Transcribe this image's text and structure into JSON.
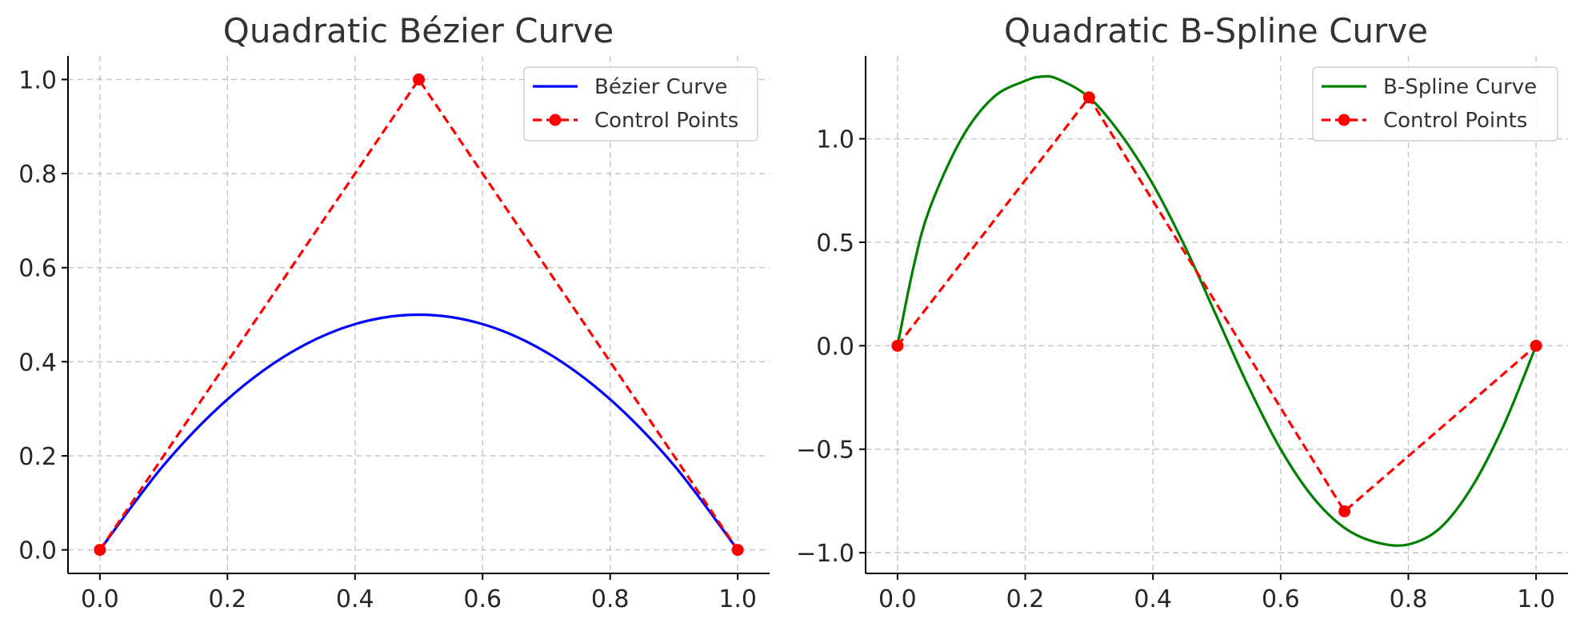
{
  "chart_data": [
    {
      "type": "line",
      "title": "Quadratic Bézier Curve",
      "xlabel": "",
      "ylabel": "",
      "xlim": [
        -0.05,
        1.05
      ],
      "ylim": [
        -0.05,
        1.05
      ],
      "xticks": [
        0.0,
        0.2,
        0.4,
        0.6,
        0.8,
        1.0
      ],
      "xtick_labels": [
        "0.0",
        "0.2",
        "0.4",
        "0.6",
        "0.8",
        "1.0"
      ],
      "yticks": [
        0.0,
        0.2,
        0.4,
        0.6,
        0.8,
        1.0
      ],
      "ytick_labels": [
        "0.0",
        "0.2",
        "0.4",
        "0.6",
        "0.8",
        "1.0"
      ],
      "grid": true,
      "legend_position": "top-right",
      "series": [
        {
          "name": "Bézier Curve",
          "style": "solid",
          "color": "#0000ff",
          "x": [
            0.0,
            0.1,
            0.2,
            0.3,
            0.4,
            0.5,
            0.6,
            0.7,
            0.8,
            0.9,
            1.0
          ],
          "y": [
            0.0,
            0.18,
            0.32,
            0.42,
            0.48,
            0.5,
            0.48,
            0.42,
            0.32,
            0.18,
            0.0
          ]
        },
        {
          "name": "Control Points",
          "style": "dashed-markers",
          "color": "#ff0000",
          "x": [
            0.0,
            0.5,
            1.0
          ],
          "y": [
            0.0,
            1.0,
            0.0
          ]
        }
      ]
    },
    {
      "type": "line",
      "title": "Quadratic B-Spline Curve",
      "xlabel": "",
      "ylabel": "",
      "xlim": [
        -0.05,
        1.05
      ],
      "ylim": [
        -1.1,
        1.4
      ],
      "xticks": [
        0.0,
        0.2,
        0.4,
        0.6,
        0.8,
        1.0
      ],
      "xtick_labels": [
        "0.0",
        "0.2",
        "0.4",
        "0.6",
        "0.8",
        "1.0"
      ],
      "yticks": [
        -1.0,
        -0.5,
        0.0,
        0.5,
        1.0
      ],
      "ytick_labels": [
        "−1.0",
        "−0.5",
        "0.0",
        "0.5",
        "1.0"
      ],
      "grid": true,
      "legend_position": "top-right",
      "series": [
        {
          "name": "B-Spline Curve",
          "style": "solid",
          "color": "#008000",
          "x": [
            0.0,
            0.025,
            0.05,
            0.1,
            0.15,
            0.2,
            0.225,
            0.25,
            0.3,
            0.35,
            0.4,
            0.45,
            0.5,
            0.55,
            0.6,
            0.65,
            0.7,
            0.75,
            0.8,
            0.85,
            0.9,
            0.95,
            1.0
          ],
          "y": [
            0.0,
            0.38,
            0.66,
            1.0,
            1.2,
            1.28,
            1.3,
            1.29,
            1.2,
            1.02,
            0.78,
            0.48,
            0.14,
            -0.2,
            -0.5,
            -0.73,
            -0.88,
            -0.95,
            -0.96,
            -0.88,
            -0.68,
            -0.38,
            0.0
          ]
        },
        {
          "name": "Control Points",
          "style": "dashed-markers",
          "color": "#ff0000",
          "x": [
            0.0,
            0.3,
            0.7,
            1.0
          ],
          "y": [
            0.0,
            1.2,
            -0.8,
            0.0
          ]
        }
      ]
    }
  ]
}
